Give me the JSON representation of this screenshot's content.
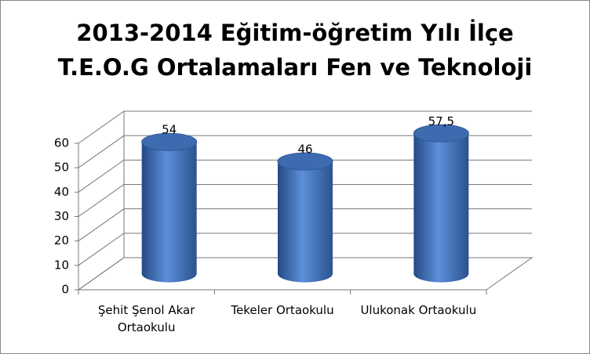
{
  "chart_data": {
    "type": "bar3d",
    "title": "2013-2014 Eğitim-öğretim Yılı İlçe\nT.E.O.G  Ortalamaları Fen ve Teknoloji",
    "categories": [
      "Şehit Şenol Akar Ortaokulu",
      "Tekeler Ortaokulu",
      "Ulukonak Ortaokulu"
    ],
    "values": [
      54,
      46,
      57.5
    ],
    "value_labels": [
      "54",
      "46",
      "57,5"
    ],
    "color": "#4a7bc4",
    "ylim": [
      0,
      60
    ],
    "yticks": [
      0,
      10,
      20,
      30,
      40,
      50,
      60
    ],
    "grid": true
  }
}
